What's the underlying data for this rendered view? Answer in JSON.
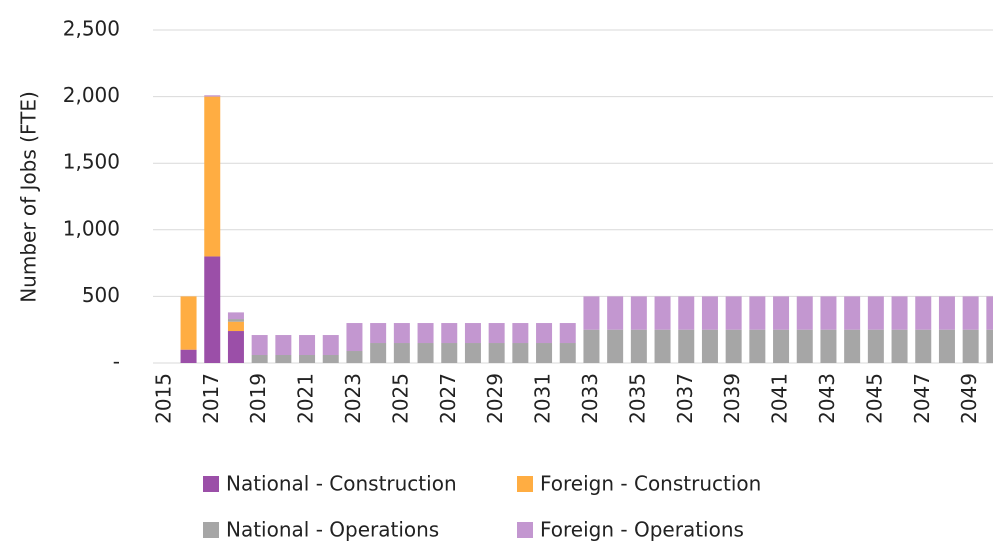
{
  "chart_data": {
    "type": "stacked_bar",
    "y_axis_label": "Number of Jobs (FTE)",
    "categories": [
      "2015",
      null,
      "2017",
      null,
      "2019",
      null,
      "2021",
      null,
      "2023",
      null,
      "2025",
      null,
      "2027",
      null,
      "2029",
      null,
      "2031",
      null,
      "2033",
      null,
      "2035",
      null,
      "2037",
      null,
      "2039",
      null,
      "2041",
      null,
      "2043",
      null,
      "2045",
      null,
      "2047",
      null,
      "2049",
      null
    ],
    "series": [
      {
        "name": "National - Construction",
        "color": "#9b4fa8",
        "values": [
          0,
          100,
          800,
          240,
          0,
          0,
          0,
          0,
          0,
          0,
          0,
          0,
          0,
          0,
          0,
          0,
          0,
          0,
          0,
          0,
          0,
          0,
          0,
          0,
          0,
          0,
          0,
          0,
          0,
          0,
          0,
          0,
          0,
          0,
          0,
          0
        ]
      },
      {
        "name": "Foreign - Construction",
        "color": "#ffad42",
        "values": [
          0,
          400,
          1200,
          70,
          0,
          0,
          0,
          0,
          0,
          0,
          0,
          0,
          0,
          0,
          0,
          0,
          0,
          0,
          0,
          0,
          0,
          0,
          0,
          0,
          0,
          0,
          0,
          0,
          0,
          0,
          0,
          0,
          0,
          0,
          0,
          0
        ]
      },
      {
        "name": "National - Operations",
        "color": "#a6a6a6",
        "values": [
          0,
          0,
          0,
          20,
          60,
          60,
          60,
          60,
          90,
          150,
          150,
          150,
          150,
          150,
          150,
          150,
          150,
          150,
          250,
          250,
          250,
          250,
          250,
          250,
          250,
          250,
          250,
          250,
          250,
          250,
          250,
          250,
          250,
          250,
          250,
          250
        ]
      },
      {
        "name": "Foreign - Operations",
        "color": "#c397d0",
        "values": [
          0,
          0,
          10,
          50,
          150,
          150,
          150,
          150,
          210,
          150,
          150,
          150,
          150,
          150,
          150,
          150,
          150,
          150,
          250,
          250,
          250,
          250,
          250,
          250,
          250,
          250,
          250,
          250,
          250,
          250,
          250,
          250,
          250,
          250,
          250,
          250
        ]
      }
    ],
    "ylim": [
      0,
      2500
    ],
    "yticks": [
      {
        "value": 0,
        "label": "-"
      },
      500,
      {
        "value": 1000,
        "label": "1,000"
      },
      {
        "value": 1500,
        "label": "1,500"
      },
      {
        "value": 2000,
        "label": "2,000"
      },
      {
        "value": 2500,
        "label": "2,500"
      }
    ],
    "grid": true,
    "legend": "bottom"
  }
}
